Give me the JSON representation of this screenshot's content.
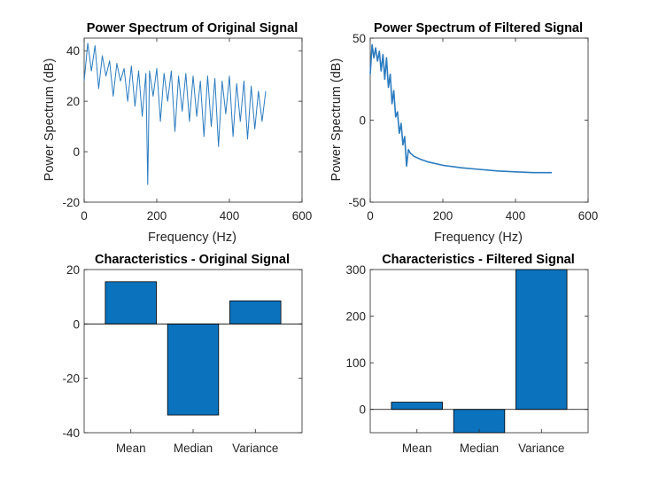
{
  "colors": {
    "line": "#2b7bc0",
    "bar": "#0b72bd",
    "axis": "#262626"
  },
  "chart_data": [
    {
      "type": "line",
      "title": "Power Spectrum of Original Signal",
      "xlabel": "Frequency (Hz)",
      "ylabel": "Power Spectrum (dB)",
      "xlim": [
        0,
        600
      ],
      "ylim": [
        -20,
        45
      ],
      "xticks": [
        0,
        200,
        400,
        600
      ],
      "yticks": [
        -20,
        0,
        20,
        40
      ],
      "series": [
        {
          "x": [
            0,
            10,
            20,
            30,
            40,
            50,
            60,
            70,
            80,
            90,
            100,
            110,
            120,
            130,
            140,
            150,
            160,
            170,
            175,
            180,
            190,
            200,
            210,
            220,
            230,
            240,
            250,
            260,
            270,
            280,
            290,
            300,
            310,
            320,
            330,
            340,
            350,
            360,
            370,
            380,
            390,
            400,
            410,
            420,
            430,
            440,
            450,
            460,
            470,
            480,
            490,
            500
          ],
          "y": [
            28,
            43,
            32,
            42,
            25,
            38,
            30,
            36,
            22,
            35,
            28,
            33,
            20,
            34,
            18,
            32,
            14,
            31,
            -13,
            32,
            22,
            33,
            12,
            31,
            20,
            32,
            8,
            30,
            16,
            31,
            12,
            30,
            14,
            28,
            6,
            30,
            10,
            29,
            2,
            28,
            15,
            30,
            6,
            27,
            12,
            28,
            5,
            26,
            9,
            24,
            12,
            24
          ]
        }
      ]
    },
    {
      "type": "line",
      "title": "Power Spectrum of Filtered Signal",
      "xlabel": "Frequency (Hz)",
      "ylabel": "Power Spectrum (dB)",
      "xlim": [
        0,
        600
      ],
      "ylim": [
        -50,
        50
      ],
      "xticks": [
        0,
        200,
        400,
        600
      ],
      "yticks": [
        -50,
        0,
        50
      ],
      "series": [
        {
          "x": [
            0,
            5,
            10,
            15,
            20,
            25,
            30,
            35,
            40,
            45,
            50,
            55,
            60,
            65,
            70,
            75,
            80,
            85,
            90,
            95,
            100,
            105,
            110,
            120,
            140,
            160,
            200,
            250,
            300,
            350,
            400,
            450,
            500
          ],
          "y": [
            28,
            46,
            38,
            44,
            36,
            42,
            30,
            40,
            25,
            38,
            20,
            28,
            10,
            18,
            2,
            5,
            -8,
            -2,
            -15,
            -10,
            -28,
            -18,
            -20,
            -22,
            -24,
            -25.5,
            -27.5,
            -29,
            -30,
            -31,
            -31.5,
            -32,
            -32
          ]
        }
      ]
    },
    {
      "type": "bar",
      "title": "Characteristics - Original Signal",
      "categories": [
        "Mean",
        "Median",
        "Variance"
      ],
      "values": [
        15.5,
        -33.5,
        8.5
      ],
      "ylim": [
        -40,
        20
      ],
      "yticks": [
        -40,
        -20,
        0,
        20
      ]
    },
    {
      "type": "bar",
      "title": "Characteristics - Filtered Signal",
      "categories": [
        "Mean",
        "Median",
        "Variance"
      ],
      "values": [
        15.5,
        -50,
        310
      ],
      "ylim": [
        -50,
        300
      ],
      "yticks": [
        0,
        100,
        200,
        300
      ]
    }
  ]
}
